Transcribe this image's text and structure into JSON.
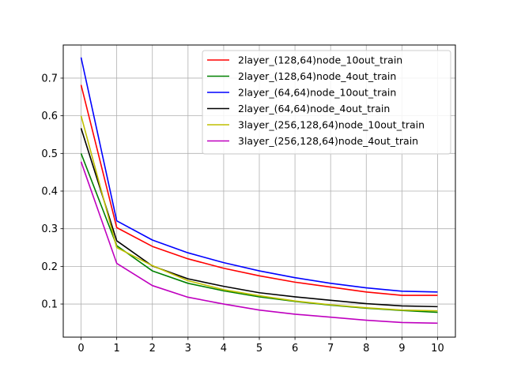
{
  "chart_data": {
    "type": "line",
    "title": "",
    "xlabel": "",
    "ylabel": "",
    "x": [
      0,
      1,
      2,
      3,
      4,
      5,
      6,
      7,
      8,
      9,
      10
    ],
    "xticks": [
      0,
      1,
      2,
      3,
      4,
      5,
      6,
      7,
      8,
      9,
      10
    ],
    "yticks": [
      0.1,
      0.2,
      0.3,
      0.4,
      0.5,
      0.6,
      0.7
    ],
    "xlim": [
      -0.5,
      10.5
    ],
    "ylim": [
      0.012,
      0.788
    ],
    "grid": true,
    "legend_position": "top-right",
    "series": [
      {
        "name": "2layer_(128,64)node_10out_train",
        "color": "#ff0000",
        "values": [
          0.682,
          0.303,
          0.253,
          0.22,
          0.195,
          0.175,
          0.158,
          0.145,
          0.132,
          0.123,
          0.123
        ]
      },
      {
        "name": "2layer_(128,64)node_4out_train",
        "color": "#008000",
        "values": [
          0.5,
          0.255,
          0.188,
          0.155,
          0.135,
          0.119,
          0.107,
          0.097,
          0.089,
          0.083,
          0.078
        ]
      },
      {
        "name": "2layer_(64,64)node_10out_train",
        "color": "#0000ff",
        "values": [
          0.755,
          0.321,
          0.27,
          0.236,
          0.21,
          0.188,
          0.17,
          0.155,
          0.143,
          0.134,
          0.132
        ]
      },
      {
        "name": "2layer_(64,64)node_4out_train",
        "color": "#000000",
        "values": [
          0.567,
          0.268,
          0.201,
          0.167,
          0.147,
          0.13,
          0.119,
          0.11,
          0.101,
          0.095,
          0.093
        ]
      },
      {
        "name": "3layer_(256,128,64)node_10out_train",
        "color": "#bfbf00",
        "values": [
          0.6,
          0.25,
          0.202,
          0.162,
          0.138,
          0.122,
          0.108,
          0.098,
          0.09,
          0.084,
          0.082
        ]
      },
      {
        "name": "3layer_(256,128,64)node_4out_train",
        "color": "#bf00bf",
        "values": [
          0.478,
          0.208,
          0.149,
          0.118,
          0.1,
          0.084,
          0.073,
          0.065,
          0.057,
          0.051,
          0.049
        ]
      }
    ]
  }
}
